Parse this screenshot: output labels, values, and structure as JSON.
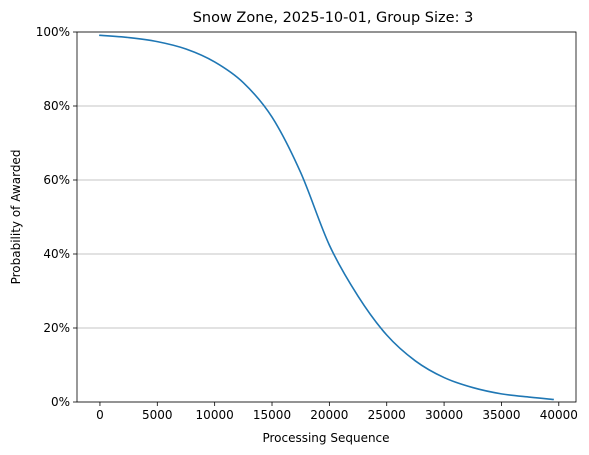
{
  "chart_data": {
    "type": "line",
    "title": "Snow Zone, 2025-10-01, Group Size: 3",
    "xlabel": "Processing Sequence",
    "ylabel": "Probability of Awarded",
    "xlim": [
      -2000,
      41500
    ],
    "ylim": [
      0,
      100
    ],
    "x_ticks": [
      0,
      5000,
      10000,
      15000,
      20000,
      25000,
      30000,
      35000,
      40000
    ],
    "x_tick_labels": [
      "0",
      "5000",
      "10000",
      "15000",
      "20000",
      "25000",
      "30000",
      "35000",
      "40000"
    ],
    "y_ticks": [
      0,
      20,
      40,
      60,
      80,
      100
    ],
    "y_tick_labels": [
      "0%",
      "20%",
      "40%",
      "60%",
      "80%",
      "100%"
    ],
    "grid": "horizontal",
    "legend": "none",
    "series": [
      {
        "color": "#1f77b4",
        "x": [
          0,
          2500,
          5000,
          7500,
          10000,
          12500,
          15000,
          17500,
          20000,
          22500,
          25000,
          27500,
          30000,
          32500,
          35000,
          37500,
          39500
        ],
        "y": [
          99.1,
          98.5,
          97.4,
          95.4,
          91.9,
          86.3,
          77.0,
          62.0,
          42.4,
          28.6,
          18.1,
          11.1,
          6.6,
          3.9,
          2.2,
          1.3,
          0.7
        ]
      }
    ]
  }
}
